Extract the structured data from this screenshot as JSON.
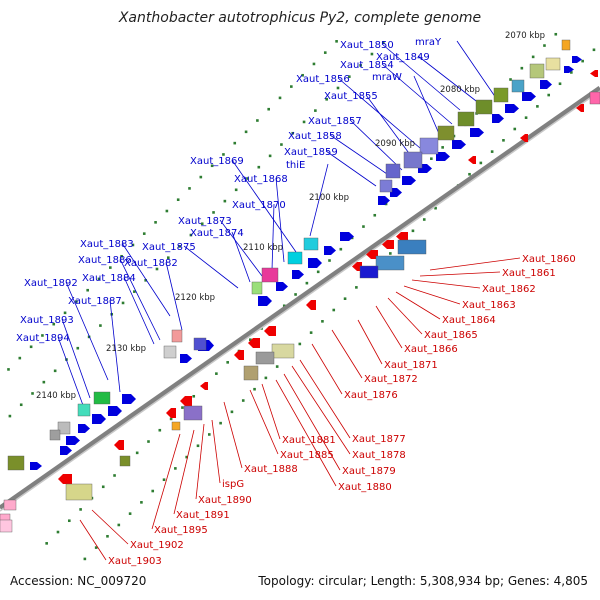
{
  "title": "Xanthobacter autotrophicus Py2, complete genome",
  "accession": "Accession: NC_009720",
  "summary": "Topology: circular; Length: 5,308,934 bp; Genes: 4,805",
  "colors": {
    "backbone": "#808080",
    "forward_label": "#0000cc",
    "reverse_label": "#cc0000",
    "forward_gene": "#0000dd",
    "reverse_gene": "#ee0000",
    "tick": "#2e7d32"
  },
  "ticks": [
    {
      "label": "2070 kbp"
    },
    {
      "label": "2080 kbp"
    },
    {
      "label": "2090 kbp"
    },
    {
      "label": "2100 kbp"
    },
    {
      "label": "2110 kbp"
    },
    {
      "label": "2120 kbp"
    },
    {
      "label": "2130 kbp"
    },
    {
      "label": "2140 kbp"
    }
  ],
  "forward_labels": [
    "Xaut_1850",
    "mraY",
    "Xaut_1849",
    "Xaut_1854",
    "mraW",
    "Xaut_1856",
    "Xaut_1855",
    "Xaut_1857",
    "Xaut_1858",
    "Xaut_1859",
    "thiE",
    "Xaut_1869",
    "Xaut_1868",
    "Xaut_1870",
    "Xaut_1873",
    "Xaut_1874",
    "Xaut_1875",
    "Xaut_1883",
    "Xaut_1882",
    "Xaut_1886",
    "Xaut_1884",
    "Xaut_1892",
    "Xaut_1887",
    "Xaut_1893",
    "Xaut_1894"
  ],
  "reverse_labels": [
    "Xaut_1860",
    "Xaut_1861",
    "Xaut_1862",
    "Xaut_1863",
    "Xaut_1864",
    "Xaut_1865",
    "Xaut_1866",
    "Xaut_1871",
    "Xaut_1872",
    "Xaut_1876",
    "Xaut_1877",
    "Xaut_1878",
    "Xaut_1879",
    "Xaut_1880",
    "Xaut_1881",
    "Xaut_1885",
    "Xaut_1888",
    "ispG",
    "Xaut_1890",
    "Xaut_1891",
    "Xaut_1895",
    "Xaut_1902",
    "Xaut_1903"
  ]
}
